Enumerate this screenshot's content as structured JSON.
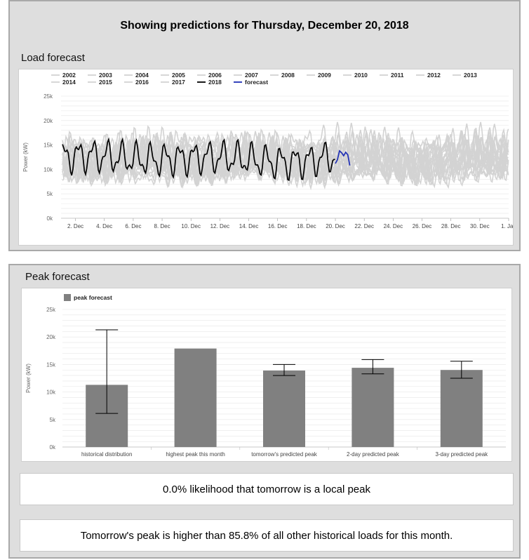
{
  "page": {
    "headline": "Showing predictions for Thursday, December 20, 2018",
    "load_section_title": "Load forecast",
    "peak_section_title": "Peak forecast",
    "likelihood_text": "0.0% likelihood that tomorrow is a local peak",
    "percentile_text": "Tomorrow's peak is higher than 85.8% of all other historical loads for this month."
  },
  "colors": {
    "historical_line": "#d3d3d3",
    "current_year_line": "#000000",
    "forecast_line": "#1f2fb5",
    "bar": "#808080",
    "grid": "#e6e6e6"
  },
  "chart_data": [
    {
      "type": "line",
      "ylabel": "Power (kW)",
      "ylim": [
        0,
        25000
      ],
      "yticks": [
        0,
        5000,
        10000,
        15000,
        20000,
        25000
      ],
      "ytick_labels": [
        "0k",
        "5k",
        "10k",
        "15k",
        "20k",
        "25k"
      ],
      "xlim": [
        "2018-12-01",
        "2019-01-01"
      ],
      "xticks": [
        "2. Dec",
        "4. Dec",
        "6. Dec",
        "8. Dec",
        "10. Dec",
        "12. Dec",
        "14. Dec",
        "16. Dec",
        "18. Dec",
        "20. Dec",
        "22. Dec",
        "24. Dec",
        "26. Dec",
        "28. Dec",
        "30. Dec",
        "1. Jan"
      ],
      "xtick_days": [
        2,
        4,
        6,
        8,
        10,
        12,
        14,
        16,
        18,
        20,
        22,
        24,
        26,
        28,
        30,
        32
      ],
      "legend_position": "top",
      "series": [
        {
          "name": "2002",
          "style": "historical",
          "base": 11000,
          "amp": 2500,
          "phase": 0.0
        },
        {
          "name": "2003",
          "style": "historical",
          "base": 12000,
          "amp": 2800,
          "phase": 0.7
        },
        {
          "name": "2004",
          "style": "historical",
          "base": 11500,
          "amp": 2600,
          "phase": 1.3
        },
        {
          "name": "2005",
          "style": "historical",
          "base": 12500,
          "amp": 3000,
          "phase": 2.1
        },
        {
          "name": "2006",
          "style": "historical",
          "base": 10500,
          "amp": 2400,
          "phase": 2.9
        },
        {
          "name": "2007",
          "style": "historical",
          "base": 13000,
          "amp": 3200,
          "phase": 3.4
        },
        {
          "name": "2008",
          "style": "historical",
          "base": 12200,
          "amp": 2900,
          "phase": 4.0
        },
        {
          "name": "2009",
          "style": "historical",
          "base": 11800,
          "amp": 2700,
          "phase": 4.6
        },
        {
          "name": "2010",
          "style": "historical",
          "base": 12800,
          "amp": 3100,
          "phase": 5.2
        },
        {
          "name": "2011",
          "style": "historical",
          "base": 11200,
          "amp": 2500,
          "phase": 5.8
        },
        {
          "name": "2012",
          "style": "historical",
          "base": 12600,
          "amp": 2800,
          "phase": 0.4
        },
        {
          "name": "2013",
          "style": "historical",
          "base": 13500,
          "amp": 3400,
          "phase": 1.0
        },
        {
          "name": "2014",
          "style": "historical",
          "base": 11600,
          "amp": 2600,
          "phase": 1.7
        },
        {
          "name": "2015",
          "style": "historical",
          "base": 10800,
          "amp": 2300,
          "phase": 2.5
        },
        {
          "name": "2016",
          "style": "historical",
          "base": 12300,
          "amp": 2900,
          "phase": 3.1
        },
        {
          "name": "2017",
          "style": "historical",
          "base": 12900,
          "amp": 3000,
          "phase": 3.8
        },
        {
          "name": "2018",
          "style": "current",
          "base": 12200,
          "amp": 2600,
          "phase": 0.2,
          "x_end": "2018-12-20"
        },
        {
          "name": "forecast",
          "style": "forecast",
          "x_start": "2018-12-20",
          "x_end": "2018-12-21",
          "values": [
            11200,
            12000,
            13800,
            13400,
            12800,
            13500,
            13000,
            10800
          ]
        }
      ]
    },
    {
      "type": "bar",
      "ylabel": "Power (kW)",
      "ylim": [
        0,
        25000
      ],
      "yticks": [
        0,
        5000,
        10000,
        15000,
        20000,
        25000
      ],
      "ytick_labels": [
        "0k",
        "5k",
        "10k",
        "15k",
        "20k",
        "25k"
      ],
      "legend_position": "top-left",
      "series": [
        {
          "name": "peak forecast",
          "categories": [
            "historical distribution",
            "highest peak this month",
            "tomorrow's predicted peak",
            "2-day predicted peak",
            "3-day predicted peak"
          ],
          "values": [
            11300,
            17900,
            13900,
            14400,
            14000
          ],
          "error_low": [
            6100,
            null,
            13000,
            13300,
            12500
          ],
          "error_high": [
            21300,
            null,
            15000,
            15900,
            15600
          ]
        }
      ]
    }
  ]
}
